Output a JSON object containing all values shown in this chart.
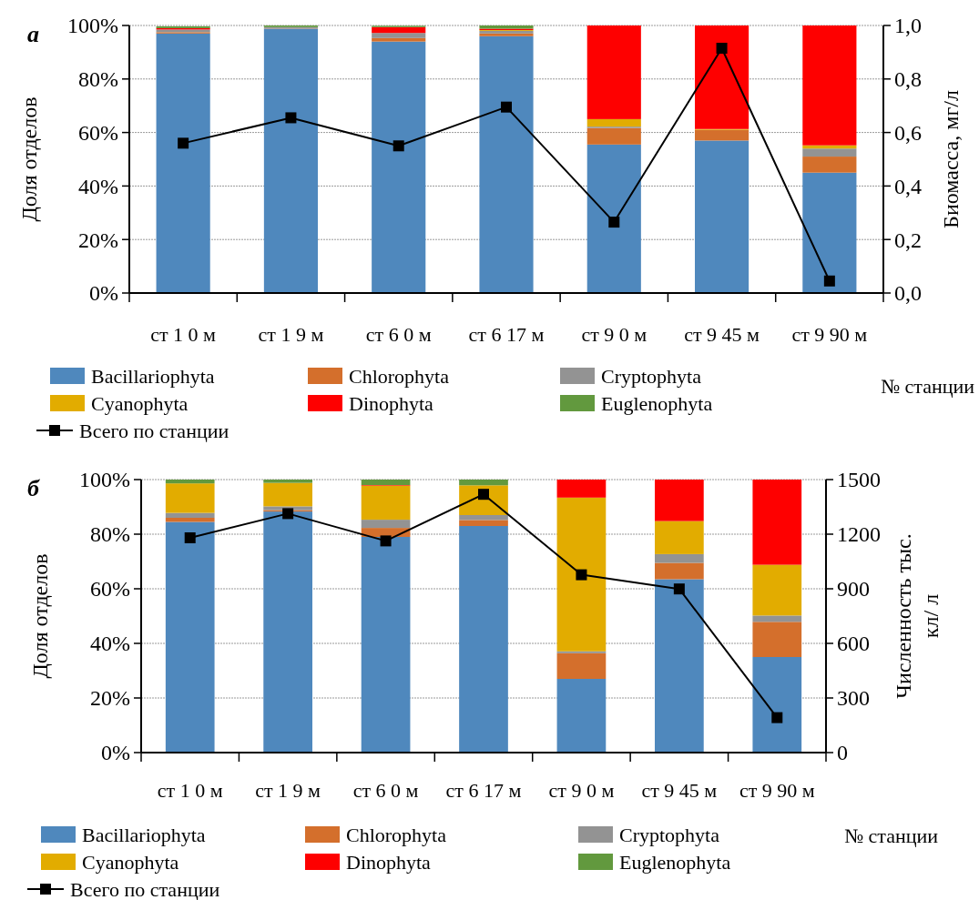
{
  "chart_data": [
    {
      "type": "bar",
      "title": "а",
      "stacked": true,
      "ylabel": "Доля отделов",
      "y2label": "Биомасса, мг/л",
      "xlabel": "№ станции",
      "legend": "bottom",
      "grid": "y",
      "marker": "square",
      "categories": [
        "ст 1 0 м",
        "ст 1 9 м",
        "ст 6 0 м",
        "ст 6 17 м",
        "ст 9 0 м",
        "ст 9 45 м",
        "ст 9 90 м"
      ],
      "ylim": [
        0,
        100
      ],
      "yticks": [
        {
          "value": 0,
          "label": "0%"
        },
        {
          "value": 20,
          "label": "20%"
        },
        {
          "value": 40,
          "label": "40%"
        },
        {
          "value": 60,
          "label": "60%"
        },
        {
          "value": 80,
          "label": "80%"
        },
        {
          "value": 100,
          "label": "100%"
        }
      ],
      "y2lim": [
        0,
        1
      ],
      "y2ticks": [
        {
          "value": 0,
          "label": "0,0"
        },
        {
          "value": 0.2,
          "label": "0,2"
        },
        {
          "value": 0.4,
          "label": "0,4"
        },
        {
          "value": 0.6,
          "label": "0,6"
        },
        {
          "value": 0.8,
          "label": "0,8"
        },
        {
          "value": 1,
          "label": "1,0"
        }
      ],
      "series": [
        {
          "name": "Bacillariophyta",
          "color": "#4f88bd",
          "values": [
            97,
            98.8,
            94,
            96,
            55.5,
            57,
            45
          ]
        },
        {
          "name": "Chlorophyta",
          "color": "#d46f2c",
          "values": [
            0.5,
            0.1,
            1.3,
            1,
            6.2,
            4,
            6
          ]
        },
        {
          "name": "Cryptophyta",
          "color": "#939393",
          "values": [
            1,
            0.5,
            1.9,
            1,
            0.5,
            0,
            3
          ]
        },
        {
          "name": "Cyanophyta",
          "color": "#e2ac00",
          "values": [
            null,
            0,
            null,
            0.3,
            2.8,
            0.3,
            1.2
          ]
        },
        {
          "name": "Dinophyta",
          "color": "#fe0000",
          "values": [
            0.5,
            0,
            2.2,
            0.5,
            35,
            38.7,
            44.8
          ]
        },
        {
          "name": "Euglenophyta",
          "color": "#62993e",
          "values": [
            0.7,
            0.6,
            0.5,
            1.2,
            0,
            0,
            0
          ]
        },
        {
          "name": "Всего по станции",
          "type": "line",
          "axis": "y2",
          "color": "#000000",
          "values": [
            0.56,
            0.655,
            0.55,
            0.695,
            0.265,
            0.915,
            0.045
          ]
        }
      ]
    },
    {
      "type": "bar",
      "title": "б",
      "stacked": true,
      "ylabel": "Доля отделов",
      "y2label": "Численность тыс.\nкл/ л",
      "xlabel": "№ станции",
      "legend": "bottom",
      "grid": "y",
      "marker": "square",
      "categories": [
        "ст 1 0 м",
        "ст 1 9 м",
        "ст 6 0 м",
        "ст 6 17 м",
        "ст 9 0 м",
        "ст 9 45 м",
        "ст 9 90 м"
      ],
      "ylim": [
        0,
        100
      ],
      "yticks": [
        {
          "value": 0,
          "label": "0%"
        },
        {
          "value": 20,
          "label": "20%"
        },
        {
          "value": 40,
          "label": "40%"
        },
        {
          "value": 60,
          "label": "60%"
        },
        {
          "value": 80,
          "label": "80%"
        },
        {
          "value": 100,
          "label": "100%"
        }
      ],
      "y2lim": [
        0,
        1500
      ],
      "y2ticks": [
        0,
        300,
        600,
        900,
        1200,
        1500
      ],
      "series": [
        {
          "name": "Bacillariophyta",
          "color": "#4f88bd",
          "values": [
            84.5,
            88.3,
            79,
            83,
            27,
            63.5,
            35
          ]
        },
        {
          "name": "Chlorophyta",
          "color": "#d46f2c",
          "values": [
            1.5,
            0.5,
            3.3,
            2.2,
            9.4,
            6,
            12.9
          ]
        },
        {
          "name": "Cryptophyta",
          "color": "#939393",
          "values": [
            1.8,
            1.4,
            3,
            1.8,
            0.7,
            3.2,
            2.3
          ]
        },
        {
          "name": "Cyanophyta",
          "color": "#e2ac00",
          "values": [
            10.8,
            8.6,
            12.5,
            10.9,
            56.3,
            12.1,
            18.6
          ]
        },
        {
          "name": "Dinophyta",
          "color": "#fe0000",
          "values": [
            0,
            0,
            0.2,
            0,
            6.6,
            15.2,
            31.2
          ]
        },
        {
          "name": "Euglenophyta",
          "color": "#62993e",
          "values": [
            1.4,
            1.2,
            2,
            2.1,
            0,
            0,
            0
          ]
        },
        {
          "name": "Всего по станции",
          "type": "line",
          "axis": "y2",
          "color": "#000000",
          "values": [
            1180,
            1313,
            1163,
            1419,
            977,
            899,
            192
          ]
        }
      ]
    }
  ]
}
